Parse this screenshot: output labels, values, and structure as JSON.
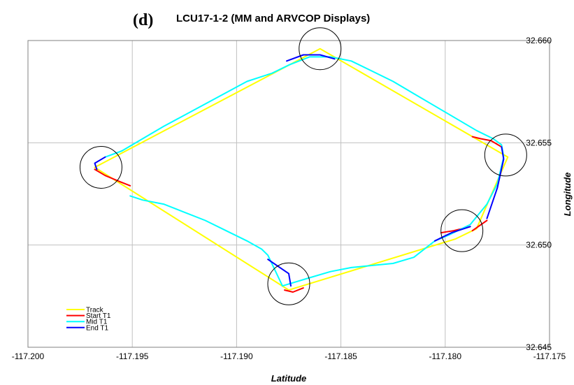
{
  "chart_data": {
    "type": "line",
    "panel_tag": "(d)",
    "title": "LCU17-1-2 (MM and ARVCOP Displays)",
    "xlabel": "Latitude",
    "ylabel": "Longitude",
    "xlim": [
      -117.2,
      -117.175
    ],
    "ylim": [
      32.645,
      32.66
    ],
    "x_ticks": [
      -117.2,
      -117.195,
      -117.19,
      -117.185,
      -117.18,
      -117.175
    ],
    "x_tick_labels": [
      "-117.200",
      "-117.195",
      "-117.190",
      "-117.185",
      "-117.180",
      "-117.175"
    ],
    "y_ticks": [
      32.645,
      32.65,
      32.655,
      32.66
    ],
    "y_tick_labels": [
      "32.645",
      "32.650",
      "32.655",
      "32.660"
    ],
    "grid": true,
    "legend_position": "bottom-left",
    "series": [
      {
        "name": "Track",
        "color": "#ffff00",
        "x": [
          -117.1968,
          -117.186,
          -117.177,
          -117.1785,
          -117.1795,
          -117.1875,
          -117.1968
        ],
        "y": [
          32.6538,
          32.6596,
          32.6543,
          32.6508,
          32.6503,
          32.6478,
          32.6538
        ]
      },
      {
        "name": "Start T1",
        "color": "#ff0000",
        "segments": [
          {
            "x": [
              -117.1968,
              -117.1963,
              -117.1956,
              -117.1951
            ],
            "y": [
              32.6537,
              32.6534,
              32.6531,
              32.6529
            ]
          },
          {
            "x": [
              -117.1877,
              -117.1873,
              -117.1868
            ],
            "y": [
              32.6478,
              32.6477,
              32.6479
            ]
          },
          {
            "x": [
              -117.1802,
              -117.1796,
              -117.1788
            ],
            "y": [
              32.6506,
              32.6507,
              32.6509
            ]
          },
          {
            "x": [
              -117.178,
              -117.1787
            ],
            "y": [
              32.6512,
              32.6507
            ]
          },
          {
            "x": [
              -117.1787,
              -117.1783,
              -117.1778,
              -117.1773
            ],
            "y": [
              32.6553,
              32.6552,
              32.6551,
              32.6548
            ]
          }
        ]
      },
      {
        "name": "Mid T1",
        "color": "#00ffff",
        "x": [
          -117.1951,
          -117.1945,
          -117.1935,
          -117.1925,
          -117.1915,
          -117.1905,
          -117.1895,
          -117.1888,
          -117.1885,
          -117.1878,
          -117.1865,
          -117.1855,
          -117.1845,
          -117.1835,
          -117.1825,
          -117.1815,
          -117.1805,
          -117.1798,
          -117.1788,
          -117.178,
          -117.1775,
          -117.1772,
          -117.1773,
          -117.1777,
          -117.1785,
          -117.1795,
          -117.1805,
          -117.1815,
          -117.1825,
          -117.1835,
          -117.1845,
          -117.1855,
          -117.1865,
          -117.1875,
          -117.1883,
          -117.1895,
          -117.1915,
          -117.1935,
          -117.1955,
          -117.1963
        ],
        "y": [
          32.6524,
          32.6522,
          32.652,
          32.6516,
          32.6512,
          32.6507,
          32.6502,
          32.6498,
          32.6495,
          32.648,
          32.6484,
          32.6487,
          32.6489,
          32.649,
          32.6491,
          32.6494,
          32.6502,
          32.6505,
          32.651,
          32.652,
          32.653,
          32.6543,
          32.6549,
          32.6552,
          32.6556,
          32.6562,
          32.6568,
          32.6574,
          32.658,
          32.6585,
          32.659,
          32.6592,
          32.6592,
          32.6588,
          32.6584,
          32.658,
          32.6569,
          32.6558,
          32.6546,
          32.6543
        ]
      },
      {
        "name": "End T1",
        "color": "#0000ff",
        "segments": [
          {
            "x": [
              -117.1963,
              -117.1968,
              -117.1967
            ],
            "y": [
              32.6543,
              32.654,
              32.6537
            ]
          },
          {
            "x": [
              -117.1885,
              -117.1875,
              -117.1874
            ],
            "y": [
              32.6493,
              32.6486,
              32.648
            ]
          },
          {
            "x": [
              -117.1876,
              -117.1868,
              -117.186,
              -117.1853
            ],
            "y": [
              32.659,
              32.6593,
              32.6593,
              32.6591
            ]
          },
          {
            "x": [
              -117.1773,
              -117.1772,
              -117.1775,
              -117.178
            ],
            "y": [
              32.6548,
              32.6542,
              32.6528,
              32.6513
            ]
          },
          {
            "x": [
              -117.1788,
              -117.1797,
              -117.1805
            ],
            "y": [
              32.6509,
              32.6506,
              32.6502
            ]
          }
        ]
      }
    ],
    "annotations": [
      {
        "shape": "circle",
        "x": -117.1965,
        "y": 32.6538
      },
      {
        "shape": "circle",
        "x": -117.186,
        "y": 32.6596
      },
      {
        "shape": "circle",
        "x": -117.1771,
        "y": 32.6544
      },
      {
        "shape": "circle",
        "x": -117.1792,
        "y": 32.6507
      },
      {
        "shape": "circle",
        "x": -117.1875,
        "y": 32.6481
      }
    ],
    "circle_color": "#000000",
    "grid_color": "#c0c0c0"
  }
}
